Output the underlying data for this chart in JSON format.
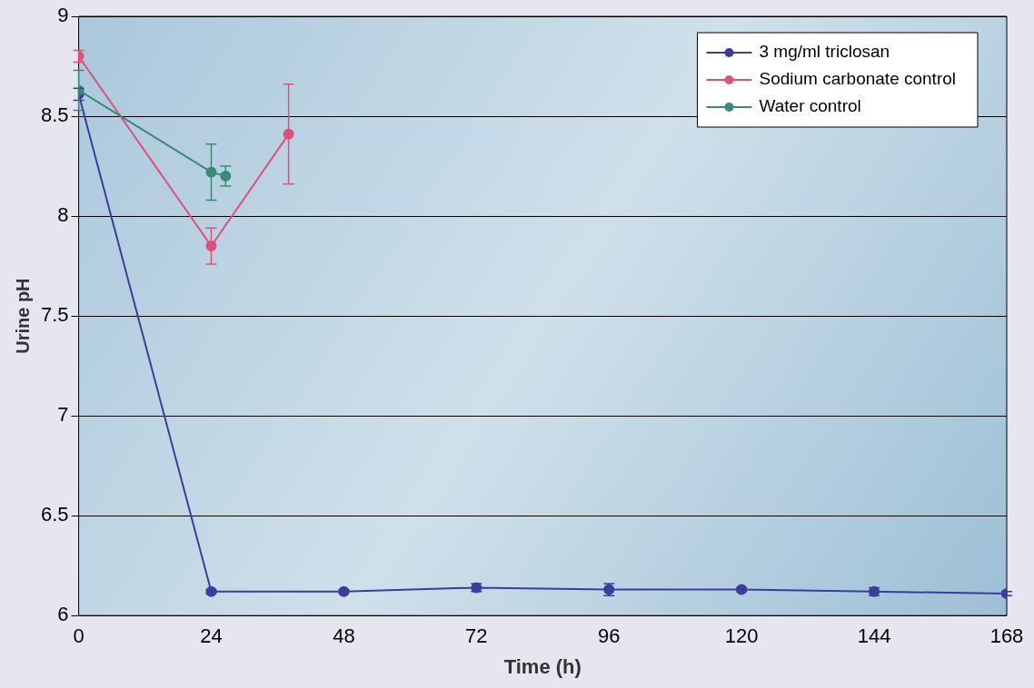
{
  "chart_data": {
    "type": "line",
    "xlabel": "Time (h)",
    "ylabel": "Urine pH",
    "xlim": [
      0,
      168
    ],
    "xticks": [
      0,
      24,
      48,
      72,
      96,
      120,
      144,
      168
    ],
    "ylim": [
      6,
      9
    ],
    "yticks": [
      6,
      6.5,
      7,
      7.5,
      8,
      8.5,
      9
    ],
    "grid": "y",
    "legend": "top right",
    "marker": "circle",
    "line_style": "solid",
    "series": [
      {
        "name": "3 mg/ml triclosan",
        "color": "#3c3c9c",
        "x": [
          0,
          24,
          48,
          72,
          96,
          120,
          144,
          168
        ],
        "values": [
          8.61,
          6.12,
          6.12,
          6.14,
          6.13,
          6.13,
          6.12,
          6.11
        ],
        "errors": [
          0.03,
          0.01,
          0.01,
          0.02,
          0.03,
          0.01,
          0.02,
          0.01
        ]
      },
      {
        "name": "Sodium carbonate control",
        "color": "#e0507a",
        "x": [
          0,
          24,
          38
        ],
        "values": [
          8.8,
          7.85,
          8.41
        ],
        "errors": [
          0.03,
          0.09,
          0.25
        ]
      },
      {
        "name": "Water control",
        "color": "#3a8a7a",
        "x": [
          0,
          24,
          26.6
        ],
        "values": [
          8.63,
          8.22,
          8.2
        ],
        "errors": [
          0.1,
          0.14,
          0.05
        ]
      }
    ]
  }
}
